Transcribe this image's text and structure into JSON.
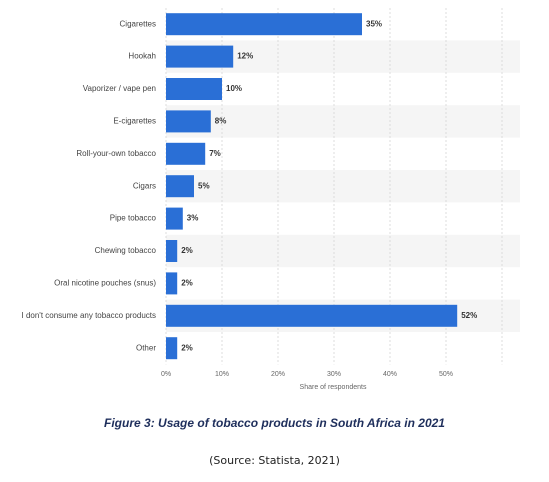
{
  "chart_data": {
    "type": "bar",
    "orientation": "horizontal",
    "categories": [
      "Cigarettes",
      "Hookah",
      "Vaporizer / vape pen",
      "E-cigarettes",
      "Roll-your-own tobacco",
      "Cigars",
      "Pipe tobacco",
      "Chewing tobacco",
      "Oral nicotine pouches (snus)",
      "I don't consume any tobacco products",
      "Other"
    ],
    "values": [
      35,
      12,
      10,
      8,
      7,
      5,
      3,
      2,
      2,
      52,
      2
    ],
    "value_labels": [
      "35%",
      "12%",
      "10%",
      "8%",
      "7%",
      "5%",
      "3%",
      "2%",
      "2%",
      "52%",
      "2%"
    ],
    "xlabel": "Share of respondents",
    "xlim": [
      0,
      60
    ],
    "xticks": [
      0,
      10,
      20,
      30,
      40,
      50
    ],
    "xtick_labels": [
      "0%",
      "10%",
      "20%",
      "30%",
      "40%",
      "50%"
    ],
    "grid": true,
    "bar_color": "#2a6fd6"
  },
  "caption": "Figure 3: Usage of tobacco products in South Africa in 2021",
  "source": "(Source: Statista, 2021)"
}
